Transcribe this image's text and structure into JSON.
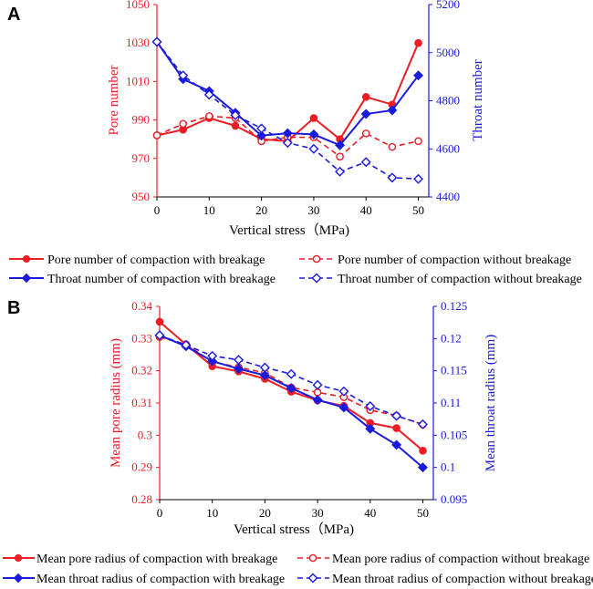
{
  "chart_data": [
    {
      "type": "line",
      "panel": "A",
      "xlabel": "Vertical stress（MPa)",
      "x": [
        0,
        5,
        10,
        15,
        20,
        25,
        30,
        35,
        40,
        45,
        50
      ],
      "xticks": [
        0,
        10,
        20,
        30,
        40,
        50
      ],
      "xlim": [
        0,
        52
      ],
      "ylabel_left": "Pore number",
      "ylabel_right": "Throat number",
      "ylim_left": [
        950,
        1050
      ],
      "yticks_left": [
        "950",
        "970",
        "990",
        "1010",
        "1030",
        "1050"
      ],
      "ylim_right": [
        4400,
        5200
      ],
      "yticks_right": [
        "4400",
        "4600",
        "4800",
        "5000",
        "5200"
      ],
      "left_color": "#ee1c24",
      "right_color": "#1a1adf",
      "series": [
        {
          "name": "Pore number of compaction with breakage",
          "axis": "left",
          "color": "#ee1c24",
          "dashed": false,
          "marker": "circle-filled",
          "values": [
            982,
            985,
            991,
            987,
            980,
            979,
            991,
            980,
            1002,
            998,
            1030
          ]
        },
        {
          "name": "Pore number of compaction without breakage",
          "axis": "left",
          "color": "#ee1c24",
          "dashed": true,
          "marker": "circle-open",
          "values": [
            982,
            988,
            992,
            991,
            979,
            981,
            981,
            971,
            983,
            976,
            979
          ]
        },
        {
          "name": "Throat number of compaction with breakage",
          "axis": "right",
          "color": "#1a1adf",
          "dashed": false,
          "marker": "diamond-filled",
          "values": [
            5045,
            4890,
            4840,
            4750,
            4655,
            4665,
            4660,
            4615,
            4745,
            4760,
            4905
          ]
        },
        {
          "name": "Throat number of compaction without breakage",
          "axis": "right",
          "color": "#1a1adf",
          "dashed": true,
          "marker": "diamond-open",
          "values": [
            5045,
            4905,
            4825,
            4740,
            4685,
            4625,
            4600,
            4505,
            4545,
            4480,
            4475
          ]
        }
      ]
    },
    {
      "type": "line",
      "panel": "B",
      "xlabel": "Vertical stress（MPa)",
      "x": [
        0,
        5,
        10,
        15,
        20,
        25,
        30,
        35,
        40,
        45,
        50
      ],
      "xticks": [
        0,
        10,
        20,
        30,
        40,
        50
      ],
      "xlim": [
        0,
        52
      ],
      "ylabel_left": "Mean pore radius (mm)",
      "ylabel_right": "Mean throat radius (mm)",
      "ylim_left": [
        0.28,
        0.34
      ],
      "yticks_left": [
        "0.28",
        "0.29",
        "0.3",
        "0.31",
        "0.32",
        "0.33",
        "0.34"
      ],
      "ylim_right": [
        0.095,
        0.125
      ],
      "yticks_right": [
        "0.095",
        "0.1",
        "0.105",
        "0.11",
        "0.115",
        "0.12",
        "0.125"
      ],
      "left_color": "#ee1c24",
      "right_color": "#1a1adf",
      "series": [
        {
          "name": "Mean pore radius of compaction with breakage",
          "axis": "left",
          "color": "#ee1c24",
          "dashed": false,
          "marker": "circle-filled",
          "values": [
            0.3352,
            0.3282,
            0.3214,
            0.3198,
            0.3175,
            0.3135,
            0.3108,
            0.3091,
            0.3038,
            0.3022,
            0.2952
          ]
        },
        {
          "name": "Mean pore radius of compaction without breakage",
          "axis": "left",
          "color": "#ee1c24",
          "dashed": true,
          "marker": "circle-open",
          "values": [
            0.3305,
            0.3282,
            0.3228,
            0.3211,
            0.3194,
            0.3148,
            0.3133,
            0.3118,
            0.3078,
            0.3061,
            0.3033
          ]
        },
        {
          "name": "Mean throat radius of compaction with breakage",
          "axis": "right",
          "color": "#1a1adf",
          "dashed": false,
          "marker": "diamond-filled",
          "values": [
            0.1205,
            0.1188,
            0.1165,
            0.1153,
            0.1143,
            0.1123,
            0.1105,
            0.1093,
            0.106,
            0.1035,
            0.1
          ]
        },
        {
          "name": "Mean throat radius of compaction without breakage",
          "axis": "right",
          "color": "#1a1adf",
          "dashed": true,
          "marker": "diamond-open",
          "values": [
            0.1205,
            0.119,
            0.1173,
            0.1167,
            0.1155,
            0.1145,
            0.1128,
            0.1118,
            0.1095,
            0.108,
            0.1067
          ]
        }
      ]
    }
  ]
}
